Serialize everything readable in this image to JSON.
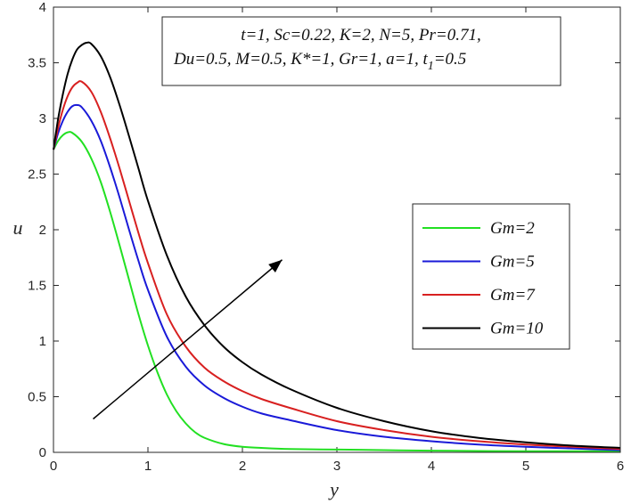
{
  "chart_data": {
    "type": "line",
    "xlabel": "y",
    "ylabel": "u",
    "xlim": [
      0,
      6
    ],
    "ylim": [
      0,
      4
    ],
    "xticks": [
      "0",
      "1",
      "2",
      "3",
      "4",
      "5",
      "6"
    ],
    "yticks": [
      "0",
      "0.5",
      "1",
      "1.5",
      "2",
      "2.5",
      "3",
      "3.5",
      "4"
    ],
    "annotation": {
      "line1": "t=1, Sc=0.22, K=2, N=5, Pr=0.71,",
      "line2_main": "Du=0.5, M=0.5, K*=1, Gr=1, a=1, t",
      "line2_sub": "1",
      "line2_tail": "=0.5"
    },
    "legend": {
      "placement": "center-right"
    },
    "arrow": {
      "from": [
        0.42,
        0.3
      ],
      "to": [
        2.42,
        1.73
      ]
    },
    "series": [
      {
        "name": "Gm=2",
        "color": "#22e022",
        "x": [
          0,
          0.05,
          0.1,
          0.15,
          0.2,
          0.3,
          0.4,
          0.5,
          0.6,
          0.7,
          0.8,
          0.9,
          1.0,
          1.1,
          1.2,
          1.3,
          1.4,
          1.5,
          1.6,
          1.8,
          2.0,
          2.2,
          2.5,
          3.0,
          3.5,
          4.0,
          5.0,
          6.0
        ],
        "y": [
          2.72,
          2.8,
          2.85,
          2.875,
          2.87,
          2.79,
          2.64,
          2.43,
          2.16,
          1.86,
          1.55,
          1.24,
          0.96,
          0.72,
          0.52,
          0.37,
          0.26,
          0.18,
          0.13,
          0.075,
          0.05,
          0.04,
          0.03,
          0.025,
          0.02,
          0.015,
          0.01,
          0.01
        ]
      },
      {
        "name": "Gm=5",
        "color": "#1a1ad8",
        "x": [
          0,
          0.05,
          0.1,
          0.15,
          0.2,
          0.25,
          0.3,
          0.4,
          0.5,
          0.6,
          0.7,
          0.8,
          0.9,
          1.0,
          1.2,
          1.4,
          1.6,
          1.8,
          2.0,
          2.2,
          2.5,
          3.0,
          3.5,
          4.0,
          4.5,
          5.0,
          5.5,
          6.0
        ],
        "y": [
          2.72,
          2.87,
          2.98,
          3.06,
          3.11,
          3.12,
          3.1,
          2.98,
          2.8,
          2.56,
          2.29,
          2.0,
          1.72,
          1.46,
          1.04,
          0.77,
          0.6,
          0.49,
          0.41,
          0.35,
          0.29,
          0.2,
          0.14,
          0.1,
          0.07,
          0.05,
          0.035,
          0.02
        ]
      },
      {
        "name": "Gm=7",
        "color": "#d82020",
        "x": [
          0,
          0.05,
          0.1,
          0.15,
          0.2,
          0.25,
          0.3,
          0.4,
          0.5,
          0.6,
          0.7,
          0.8,
          0.9,
          1.0,
          1.2,
          1.4,
          1.6,
          1.8,
          2.0,
          2.2,
          2.5,
          3.0,
          3.5,
          4.0,
          4.5,
          5.0,
          5.5,
          6.0
        ],
        "y": [
          2.72,
          2.92,
          3.08,
          3.2,
          3.28,
          3.32,
          3.33,
          3.24,
          3.06,
          2.82,
          2.55,
          2.26,
          1.97,
          1.7,
          1.24,
          0.95,
          0.76,
          0.64,
          0.55,
          0.48,
          0.4,
          0.28,
          0.2,
          0.14,
          0.1,
          0.07,
          0.05,
          0.03
        ]
      },
      {
        "name": "Gm=10",
        "color": "#000000",
        "x": [
          0,
          0.05,
          0.1,
          0.15,
          0.2,
          0.25,
          0.3,
          0.35,
          0.4,
          0.5,
          0.6,
          0.7,
          0.8,
          0.9,
          1.0,
          1.2,
          1.4,
          1.6,
          1.8,
          2.0,
          2.2,
          2.5,
          3.0,
          3.5,
          4.0,
          4.5,
          5.0,
          5.5,
          6.0
        ],
        "y": [
          2.72,
          3.0,
          3.22,
          3.4,
          3.53,
          3.62,
          3.66,
          3.68,
          3.67,
          3.56,
          3.37,
          3.12,
          2.84,
          2.55,
          2.26,
          1.77,
          1.4,
          1.14,
          0.95,
          0.81,
          0.7,
          0.57,
          0.4,
          0.28,
          0.19,
          0.13,
          0.09,
          0.06,
          0.04
        ]
      }
    ]
  }
}
